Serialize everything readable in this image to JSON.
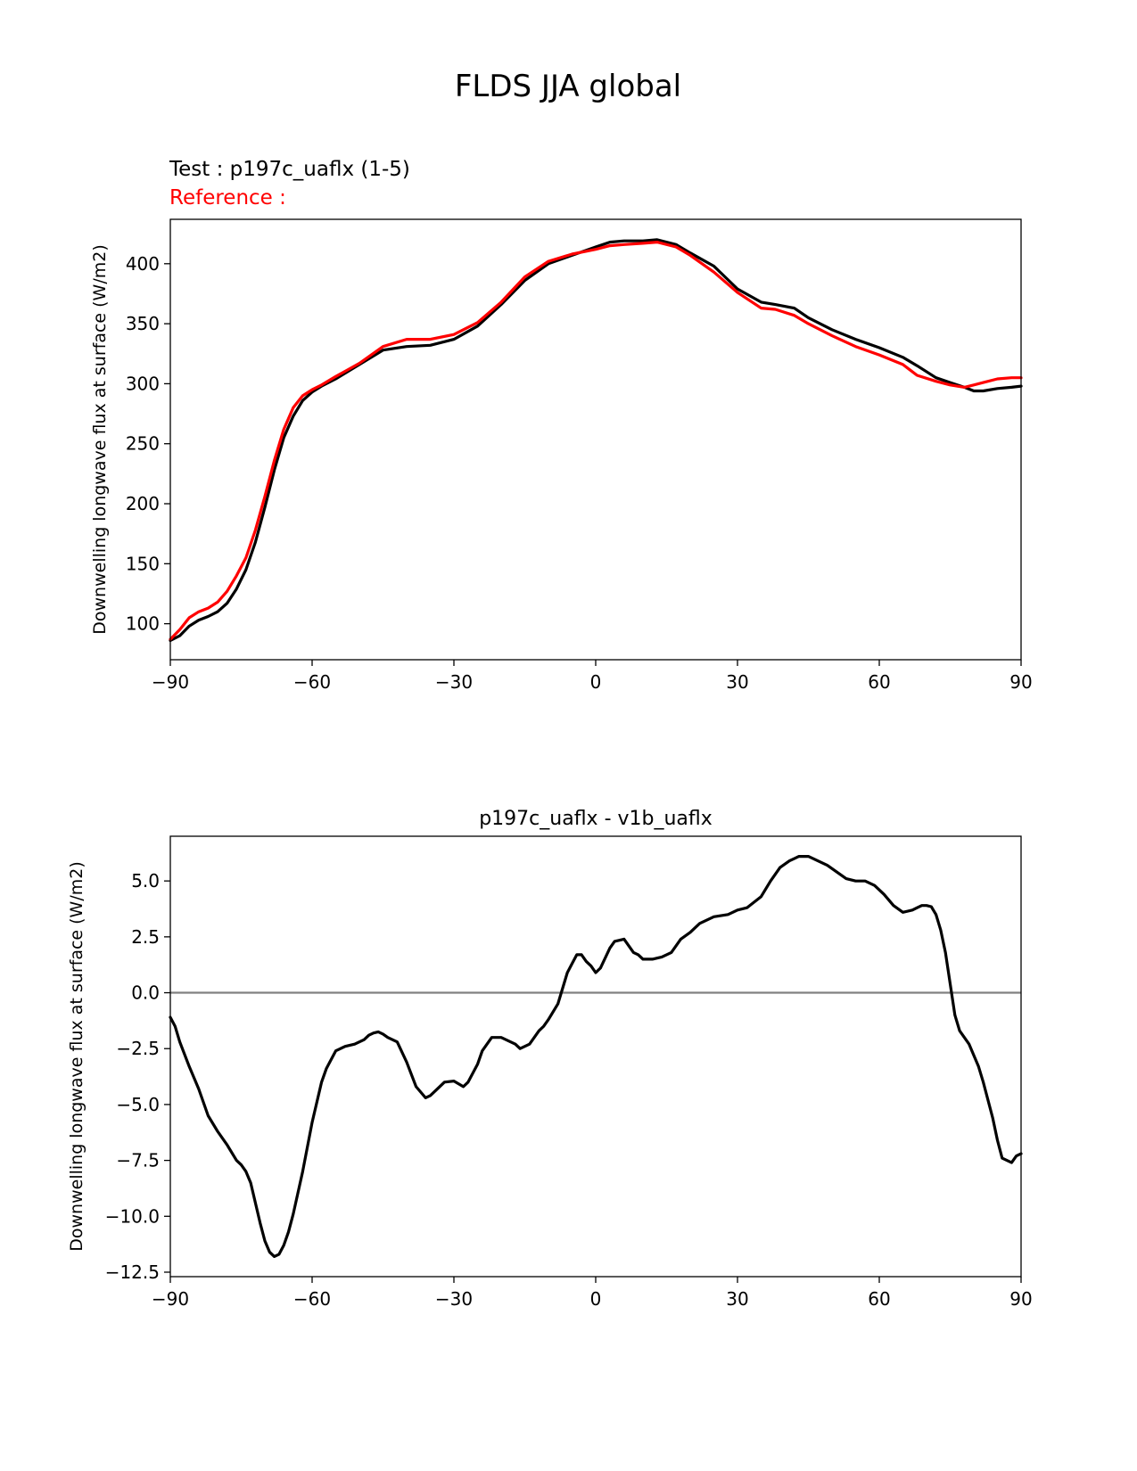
{
  "figure": {
    "title": "FLDS JJA global"
  },
  "colors": {
    "test": "#000000",
    "reference": "#ff0000",
    "zero_line": "#808080"
  },
  "chart_data": [
    {
      "type": "line",
      "title": "",
      "subtitle_test": "Test : p197c_uaflx (1-5)",
      "subtitle_reference": "Reference :",
      "xlabel": "",
      "ylabel": "Downwelling longwave flux at surface (W/m2)",
      "xlim": [
        -90,
        90
      ],
      "ylim": [
        70,
        437
      ],
      "x_ticks": [
        -90,
        -60,
        -30,
        0,
        30,
        60,
        90
      ],
      "x_tick_labels": [
        "−90",
        "−60",
        "−30",
        "0",
        "30",
        "60",
        "90"
      ],
      "y_ticks": [
        100,
        150,
        200,
        250,
        300,
        350,
        400
      ],
      "y_tick_labels": [
        "100",
        "150",
        "200",
        "250",
        "300",
        "350",
        "400"
      ],
      "grid": false,
      "series": [
        {
          "color": "#000000",
          "x": [
            -90,
            -88,
            -86,
            -84,
            -82,
            -80,
            -78,
            -76,
            -74,
            -72,
            -70,
            -68,
            -66,
            -64,
            -62,
            -60,
            -58,
            -55,
            -50,
            -45,
            -40,
            -35,
            -30,
            -25,
            -20,
            -15,
            -10,
            -5,
            0,
            3,
            6,
            10,
            13,
            17,
            20,
            25,
            30,
            35,
            38,
            42,
            45,
            50,
            55,
            60,
            65,
            68,
            72,
            75,
            78,
            80,
            82,
            85,
            88,
            90
          ],
          "values": [
            86,
            90,
            98,
            103,
            106,
            110,
            117,
            129,
            145,
            168,
            197,
            228,
            255,
            273,
            286,
            293,
            298,
            304,
            316,
            328,
            331,
            332,
            337,
            348,
            366,
            386,
            400,
            407,
            414,
            418,
            419,
            419,
            420,
            416,
            409,
            398,
            379,
            368,
            366,
            363,
            355,
            345,
            337,
            330,
            322,
            315,
            305,
            301,
            297,
            294,
            294,
            296,
            297,
            298
          ]
        },
        {
          "color": "#ff0000",
          "x": [
            -90,
            -88,
            -86,
            -84,
            -82,
            -80,
            -78,
            -76,
            -74,
            -72,
            -70,
            -68,
            -66,
            -64,
            -62,
            -60,
            -58,
            -55,
            -50,
            -45,
            -40,
            -35,
            -30,
            -25,
            -20,
            -15,
            -10,
            -5,
            0,
            3,
            6,
            10,
            13,
            17,
            20,
            25,
            30,
            35,
            38,
            42,
            45,
            50,
            55,
            60,
            65,
            68,
            72,
            75,
            78,
            80,
            82,
            85,
            88,
            90
          ],
          "values": [
            87,
            95,
            105,
            110,
            113,
            118,
            127,
            140,
            155,
            178,
            206,
            236,
            262,
            280,
            290,
            295,
            299,
            306,
            317,
            331,
            337,
            337,
            341,
            351,
            368,
            389,
            402,
            408,
            412,
            415,
            416,
            417,
            418,
            414,
            407,
            393,
            376,
            363,
            362,
            357,
            350,
            340,
            331,
            324,
            316,
            307,
            302,
            299,
            297,
            299,
            301,
            304,
            305,
            305
          ]
        }
      ]
    },
    {
      "type": "line",
      "title": "p197c_uaflx - v1b_uaflx",
      "xlabel": "",
      "ylabel": "Downwelling longwave flux at surface (W/m2)",
      "xlim": [
        -90,
        90
      ],
      "ylim": [
        -12.7,
        7.0
      ],
      "x_ticks": [
        -90,
        -60,
        -30,
        0,
        30,
        60,
        90
      ],
      "x_tick_labels": [
        "−90",
        "−60",
        "−30",
        "0",
        "30",
        "60",
        "90"
      ],
      "y_ticks": [
        -12.5,
        -10.0,
        -7.5,
        -5.0,
        -2.5,
        0.0,
        2.5,
        5.0
      ],
      "y_tick_labels": [
        "−12.5",
        "−10.0",
        "−7.5",
        "−5.0",
        "−2.5",
        "0.0",
        "2.5",
        "5.0"
      ],
      "grid": false,
      "reference_line": 0,
      "series": [
        {
          "color": "#000000",
          "x": [
            -90,
            -89,
            -88,
            -86,
            -84,
            -82,
            -80,
            -78,
            -76,
            -75,
            -74,
            -73,
            -72,
            -71,
            -70,
            -69,
            -68,
            -67,
            -66,
            -65,
            -64,
            -62,
            -60,
            -58,
            -57,
            -55,
            -53,
            -51,
            -49,
            -48,
            -47,
            -46,
            -45,
            -44,
            -42,
            -40,
            -38,
            -36,
            -35,
            -34,
            -32,
            -30,
            -28,
            -27,
            -25,
            -24,
            -22,
            -20,
            -18,
            -17,
            -16,
            -14,
            -12,
            -11,
            -10,
            -8,
            -6,
            -5,
            -4,
            -3,
            -2,
            -1,
            0,
            1,
            3,
            4,
            6,
            7,
            8,
            9,
            10,
            12,
            14,
            16,
            18,
            20,
            22,
            25,
            28,
            30,
            32,
            35,
            37,
            39,
            41,
            43,
            45,
            47,
            49,
            51,
            53,
            55,
            57,
            59,
            61,
            63,
            65,
            67,
            68,
            69,
            70,
            71,
            72,
            73,
            74,
            76,
            77,
            79,
            81,
            82,
            84,
            85,
            86,
            87,
            88,
            89,
            90
          ],
          "values": [
            -1.1,
            -1.5,
            -2.2,
            -3.3,
            -4.3,
            -5.5,
            -6.2,
            -6.8,
            -7.5,
            -7.7,
            -8.0,
            -8.5,
            -9.4,
            -10.3,
            -11.1,
            -11.6,
            -11.8,
            -11.7,
            -11.3,
            -10.7,
            -9.9,
            -8.0,
            -5.8,
            -4.0,
            -3.4,
            -2.6,
            -2.4,
            -2.3,
            -2.1,
            -1.9,
            -1.8,
            -1.75,
            -1.85,
            -2.0,
            -2.2,
            -3.1,
            -4.2,
            -4.7,
            -4.6,
            -4.4,
            -4.0,
            -3.95,
            -4.2,
            -4.0,
            -3.2,
            -2.6,
            -2.0,
            -2.0,
            -2.2,
            -2.3,
            -2.5,
            -2.3,
            -1.7,
            -1.5,
            -1.2,
            -0.5,
            0.9,
            1.3,
            1.7,
            1.7,
            1.4,
            1.2,
            0.9,
            1.1,
            2.0,
            2.3,
            2.4,
            2.1,
            1.8,
            1.7,
            1.5,
            1.5,
            1.6,
            1.8,
            2.4,
            2.7,
            3.1,
            3.4,
            3.5,
            3.7,
            3.8,
            4.3,
            5.0,
            5.6,
            5.9,
            6.1,
            6.1,
            5.9,
            5.7,
            5.4,
            5.1,
            5.0,
            5.0,
            4.8,
            4.4,
            3.9,
            3.6,
            3.7,
            3.8,
            3.9,
            3.9,
            3.85,
            3.5,
            2.8,
            1.8,
            -1.0,
            -1.7,
            -2.3,
            -3.3,
            -4.0,
            -5.6,
            -6.6,
            -7.4,
            -7.5,
            -7.6,
            -7.3,
            -7.2
          ]
        }
      ]
    }
  ]
}
